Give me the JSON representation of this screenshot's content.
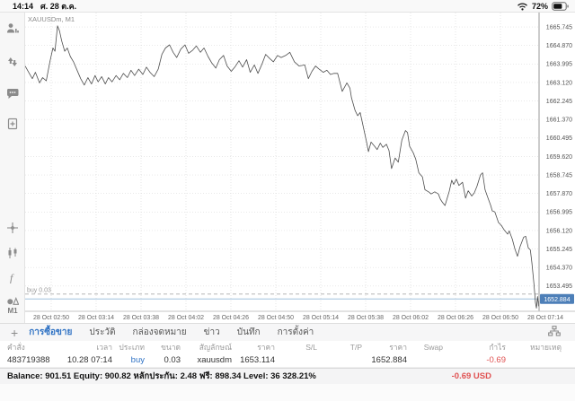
{
  "status_bar": {
    "time": "14:14",
    "date": "ศ. 28 ต.ค.",
    "battery": "72%"
  },
  "sidebar": {
    "items": [
      {
        "name": "profile-icon"
      },
      {
        "name": "push-arrows-icon"
      },
      {
        "name": "chat-icon"
      },
      {
        "name": "new-chart-icon"
      },
      {
        "name": "crosshair-icon"
      },
      {
        "name": "chart-type-icon"
      },
      {
        "name": "indicators-icon"
      },
      {
        "name": "objects-icon"
      }
    ],
    "timeframe_label": "M1"
  },
  "chart": {
    "symbol_label": "XAUUSDm, M1",
    "position_label": "buy 0.03",
    "current_price_label": "1652.884"
  },
  "chart_data": {
    "type": "line",
    "title": "XAUUSDm, M1",
    "ylim": [
      1652.3,
      1666.3
    ],
    "grid": true,
    "y_axis_labels": [
      "1665.745",
      "1664.870",
      "1663.995",
      "1663.120",
      "1662.245",
      "1661.370",
      "1660.495",
      "1659.620",
      "1658.745",
      "1657.870",
      "1656.995",
      "1656.120",
      "1655.245",
      "1654.370",
      "1653.495"
    ],
    "x_axis_labels": [
      "28 Oct 02:50",
      "28 Oct 03:14",
      "28 Oct 03:38",
      "28 Oct 04:02",
      "28 Oct 04:26",
      "28 Oct 04:50",
      "28 Oct 05:14",
      "28 Oct 05:38",
      "28 Oct 06:02",
      "28 Oct 06:26",
      "28 Oct 06:50",
      "28 Oct 07:14"
    ],
    "current_price": 1652.884,
    "position_line": {
      "label": "buy 0.03",
      "price": 1653.114
    },
    "series": [
      {
        "name": "XAUUSDm M1 close",
        "points": [
          [
            0.0,
            1663.9
          ],
          [
            0.008,
            1663.55
          ],
          [
            0.014,
            1663.3
          ],
          [
            0.02,
            1663.6
          ],
          [
            0.028,
            1663.1
          ],
          [
            0.034,
            1663.35
          ],
          [
            0.041,
            1663.2
          ],
          [
            0.048,
            1664.1
          ],
          [
            0.054,
            1664.75
          ],
          [
            0.058,
            1664.6
          ],
          [
            0.063,
            1665.8
          ],
          [
            0.067,
            1665.55
          ],
          [
            0.071,
            1665.1
          ],
          [
            0.077,
            1664.6
          ],
          [
            0.082,
            1664.75
          ],
          [
            0.088,
            1664.35
          ],
          [
            0.094,
            1664.1
          ],
          [
            0.101,
            1663.7
          ],
          [
            0.108,
            1663.3
          ],
          [
            0.115,
            1663.0
          ],
          [
            0.122,
            1663.35
          ],
          [
            0.129,
            1663.05
          ],
          [
            0.136,
            1663.45
          ],
          [
            0.142,
            1663.15
          ],
          [
            0.149,
            1663.4
          ],
          [
            0.156,
            1663.05
          ],
          [
            0.162,
            1663.35
          ],
          [
            0.169,
            1663.15
          ],
          [
            0.177,
            1663.45
          ],
          [
            0.184,
            1663.25
          ],
          [
            0.191,
            1663.55
          ],
          [
            0.199,
            1663.35
          ],
          [
            0.206,
            1663.7
          ],
          [
            0.213,
            1663.45
          ],
          [
            0.221,
            1663.75
          ],
          [
            0.229,
            1663.5
          ],
          [
            0.236,
            1663.85
          ],
          [
            0.243,
            1663.6
          ],
          [
            0.251,
            1663.4
          ],
          [
            0.259,
            1663.75
          ],
          [
            0.266,
            1664.45
          ],
          [
            0.273,
            1664.75
          ],
          [
            0.281,
            1664.9
          ],
          [
            0.288,
            1664.55
          ],
          [
            0.295,
            1664.3
          ],
          [
            0.303,
            1664.7
          ],
          [
            0.311,
            1664.9
          ],
          [
            0.318,
            1664.5
          ],
          [
            0.326,
            1664.65
          ],
          [
            0.333,
            1664.85
          ],
          [
            0.341,
            1664.55
          ],
          [
            0.348,
            1664.75
          ],
          [
            0.356,
            1664.35
          ],
          [
            0.363,
            1664.05
          ],
          [
            0.371,
            1663.8
          ],
          [
            0.378,
            1664.2
          ],
          [
            0.386,
            1664.4
          ],
          [
            0.393,
            1663.9
          ],
          [
            0.401,
            1663.65
          ],
          [
            0.408,
            1663.85
          ],
          [
            0.416,
            1664.15
          ],
          [
            0.423,
            1663.85
          ],
          [
            0.431,
            1664.2
          ],
          [
            0.438,
            1663.6
          ],
          [
            0.446,
            1663.95
          ],
          [
            0.453,
            1663.55
          ],
          [
            0.461,
            1664.0
          ],
          [
            0.468,
            1664.45
          ],
          [
            0.476,
            1664.25
          ],
          [
            0.483,
            1664.1
          ],
          [
            0.491,
            1664.4
          ],
          [
            0.498,
            1664.3
          ],
          [
            0.507,
            1664.4
          ],
          [
            0.515,
            1664.55
          ],
          [
            0.524,
            1664.1
          ],
          [
            0.533,
            1663.9
          ],
          [
            0.544,
            1663.95
          ],
          [
            0.551,
            1663.3
          ],
          [
            0.558,
            1663.65
          ],
          [
            0.565,
            1663.9
          ],
          [
            0.572,
            1663.75
          ],
          [
            0.58,
            1663.6
          ],
          [
            0.587,
            1663.7
          ],
          [
            0.594,
            1663.5
          ],
          [
            0.601,
            1663.55
          ],
          [
            0.608,
            1663.55
          ],
          [
            0.617,
            1662.7
          ],
          [
            0.626,
            1663.1
          ],
          [
            0.632,
            1662.85
          ],
          [
            0.635,
            1662.4
          ],
          [
            0.642,
            1661.8
          ],
          [
            0.647,
            1661.55
          ],
          [
            0.652,
            1661.7
          ],
          [
            0.656,
            1661.25
          ],
          [
            0.664,
            1660.35
          ],
          [
            0.668,
            1659.85
          ],
          [
            0.673,
            1660.3
          ],
          [
            0.68,
            1660.1
          ],
          [
            0.685,
            1659.95
          ],
          [
            0.691,
            1660.25
          ],
          [
            0.696,
            1660.05
          ],
          [
            0.703,
            1660.2
          ],
          [
            0.708,
            1659.9
          ],
          [
            0.713,
            1659.05
          ],
          [
            0.72,
            1659.55
          ],
          [
            0.726,
            1659.35
          ],
          [
            0.733,
            1660.4
          ],
          [
            0.74,
            1660.85
          ],
          [
            0.744,
            1660.75
          ],
          [
            0.748,
            1660.1
          ],
          [
            0.755,
            1659.8
          ],
          [
            0.76,
            1659.5
          ],
          [
            0.766,
            1658.85
          ],
          [
            0.773,
            1658.65
          ],
          [
            0.778,
            1658.05
          ],
          [
            0.785,
            1657.95
          ],
          [
            0.79,
            1657.85
          ],
          [
            0.797,
            1657.95
          ],
          [
            0.804,
            1657.85
          ],
          [
            0.808,
            1657.6
          ],
          [
            0.812,
            1657.45
          ],
          [
            0.817,
            1657.3
          ],
          [
            0.825,
            1657.95
          ],
          [
            0.83,
            1658.5
          ],
          [
            0.834,
            1658.3
          ],
          [
            0.839,
            1658.55
          ],
          [
            0.844,
            1658.25
          ],
          [
            0.851,
            1658.4
          ],
          [
            0.857,
            1657.65
          ],
          [
            0.862,
            1658.0
          ],
          [
            0.869,
            1657.75
          ],
          [
            0.874,
            1657.9
          ],
          [
            0.879,
            1658.2
          ],
          [
            0.886,
            1658.75
          ],
          [
            0.89,
            1658.85
          ],
          [
            0.895,
            1658.05
          ],
          [
            0.9,
            1657.7
          ],
          [
            0.906,
            1657.3
          ],
          [
            0.909,
            1657.05
          ],
          [
            0.914,
            1657.0
          ],
          [
            0.921,
            1656.5
          ],
          [
            0.927,
            1656.35
          ],
          [
            0.932,
            1656.15
          ],
          [
            0.939,
            1655.95
          ],
          [
            0.942,
            1656.1
          ],
          [
            0.948,
            1655.7
          ],
          [
            0.953,
            1655.25
          ],
          [
            0.958,
            1654.9
          ],
          [
            0.963,
            1655.35
          ],
          [
            0.97,
            1655.8
          ],
          [
            0.974,
            1655.85
          ],
          [
            0.979,
            1655.3
          ],
          [
            0.983,
            1655.2
          ],
          [
            0.986,
            1654.6
          ],
          [
            0.99,
            1653.6
          ],
          [
            0.993,
            1652.7
          ],
          [
            0.995,
            1652.45
          ],
          [
            0.997,
            1653.0
          ],
          [
            0.999,
            1652.55
          ],
          [
            1.0,
            1652.884
          ]
        ]
      }
    ],
    "colors": {
      "line": "#4d4d4d",
      "grid": "#dcdcdc",
      "current_price_line": "#9fc0de",
      "price_badge": "#4d7fb8",
      "position_line": "#aaaaaa"
    }
  },
  "tabs": {
    "add_icon": "+",
    "items": [
      {
        "label": "การซื้อขาย",
        "selected": true
      },
      {
        "label": "ประวัติ",
        "selected": false
      },
      {
        "label": "กล่องจดหมาย",
        "selected": false
      },
      {
        "label": "ข่าว",
        "selected": false
      },
      {
        "label": "บันทึก",
        "selected": false
      },
      {
        "label": "การตั้งค่า",
        "selected": false
      }
    ]
  },
  "table": {
    "headers": [
      "คำสั่ง",
      "เวลา",
      "ประเภท",
      "ขนาด",
      "สัญลักษณ์",
      "ราคา",
      "S/L",
      "T/P",
      "ราคา",
      "Swap",
      "กำไร",
      "หมายเหตุ"
    ],
    "rows": [
      {
        "cells": [
          "483719388",
          "10.28 07:14",
          "buy",
          "0.03",
          "xauusdm",
          "1653.114",
          "",
          "",
          "1652.884",
          "",
          "-0.69",
          ""
        ],
        "type_color": "#2f72c4",
        "profit_color": "#e05252"
      }
    ]
  },
  "summary": {
    "balance_line": "Balance: 901.51 Equity: 900.82 หลักประกัน: 2.48 ฟรี: 898.34 Level: 36 328.21%",
    "profit": "-0.69  USD"
  }
}
